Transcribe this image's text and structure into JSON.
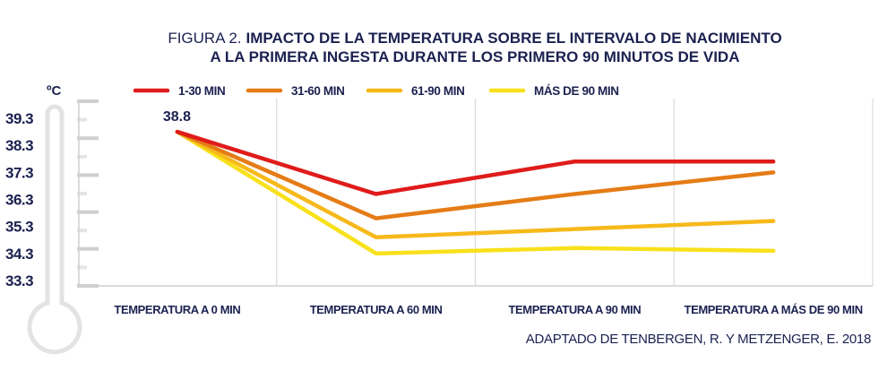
{
  "chart_data": {
    "type": "line",
    "title_prefix": "FIGURA 2.",
    "title_line1": "IMPACTO DE LA TEMPERATURA SOBRE EL INTERVALO DE NACIMIENTO",
    "title_line2": "A LA PRIMERA INGESTA DURANTE LOS PRIMERO 90 MINUTOS DE VIDA",
    "ylabel": "ºC",
    "xlabel": "",
    "ylim": [
      33.3,
      39.3
    ],
    "yticks": [
      "39.3",
      "38.3",
      "37.3",
      "36.3",
      "35.3",
      "34.3",
      "33.3"
    ],
    "ytick_values": [
      39.3,
      38.3,
      37.3,
      36.3,
      35.3,
      34.3,
      33.3
    ],
    "categories": [
      "TEMPERATURA A 0 MIN",
      "TEMPERATURA A 60 MIN",
      "TEMPERATURA A 90 MIN",
      "TEMPERATURA A MÁS DE 90 MIN"
    ],
    "series": [
      {
        "name": "1-30 MIN",
        "color": "#e01b1b",
        "values": [
          38.8,
          36.5,
          37.7,
          37.7
        ]
      },
      {
        "name": "31-60 MIN",
        "color": "#e57c17",
        "values": [
          38.8,
          35.6,
          36.5,
          37.3
        ]
      },
      {
        "name": "61-90 MIN",
        "color": "#f6b91a",
        "values": [
          38.8,
          34.9,
          35.2,
          35.5
        ]
      },
      {
        "name": "MÁS DE 90 MIN",
        "color": "#f8e11b",
        "values": [
          38.8,
          34.3,
          34.5,
          34.4
        ]
      }
    ],
    "annotations": [
      {
        "text": "38.8",
        "category": "TEMPERATURA A 0 MIN",
        "value": 38.8
      }
    ],
    "legend_position": "top",
    "grid": "vertical",
    "source": "ADAPTADO DE TENBERGEN, R. Y METZENGER, E. 2018"
  },
  "colors": {
    "text": "#1b2150",
    "grid": "#dcdcdc",
    "thermometer": "#e3e3e3",
    "ticks": "#cfcfcf"
  }
}
